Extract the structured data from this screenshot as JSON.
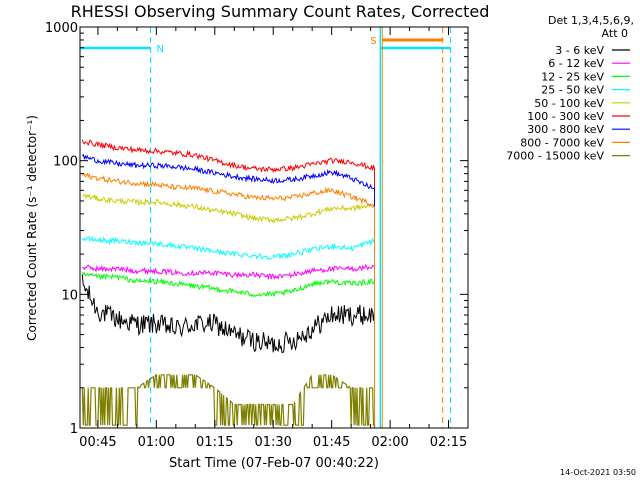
{
  "chart_data": {
    "type": "line",
    "title": "RHESSI Observing Summary Count Rates, Corrected",
    "xlabel": "Start Time (07-Feb-07 00:40:22)",
    "ylabel": "Corrected Count Rate (s⁻¹ detector⁻¹)",
    "yscale": "log",
    "ylim": [
      1,
      1000
    ],
    "xlim_minutes": [
      40.4,
      140
    ],
    "x_ticks": [
      {
        "minute": 45,
        "label": "00:45"
      },
      {
        "minute": 60,
        "label": "01:00"
      },
      {
        "minute": 75,
        "label": "01:15"
      },
      {
        "minute": 90,
        "label": "01:30"
      },
      {
        "minute": 105,
        "label": "01:45"
      },
      {
        "minute": 120,
        "label": "02:00"
      },
      {
        "minute": 135,
        "label": "02:15"
      }
    ],
    "y_ticks": [
      {
        "value": 1,
        "label": "1"
      },
      {
        "value": 10,
        "label": "10"
      },
      {
        "value": 100,
        "label": "100"
      },
      {
        "value": 1000,
        "label": "1000"
      }
    ],
    "legend_header": [
      "Det 1,3,4,5,6,9,",
      "Att 0"
    ],
    "legend_placement": "right",
    "grid": false,
    "timestamp": "14-Oct-2021 03:50",
    "data_end_minute": 116,
    "night_intervals": [
      {
        "start": 40.4,
        "end": 58.5,
        "label": "N",
        "color": "#00e5ff"
      },
      {
        "start": 117.5,
        "end": 135.5,
        "color": "#00e5ff"
      }
    ],
    "saa_interval": {
      "start": 118,
      "end": 133.5,
      "label": "S",
      "color": "#ff8000"
    },
    "minute_x": [
      41,
      45,
      50,
      55,
      60,
      65,
      70,
      75,
      80,
      85,
      90,
      95,
      100,
      105,
      110,
      115.5
    ],
    "series": [
      {
        "name": "3 - 6 keV",
        "color": "#000000",
        "values": [
          12,
          7.5,
          6.5,
          6,
          6,
          5.5,
          6,
          6,
          5,
          4.5,
          4.2,
          4.5,
          5.5,
          7,
          7,
          7
        ]
      },
      {
        "name": "6 - 12 keV",
        "color": "#ff00ff",
        "values": [
          16,
          15.5,
          15.5,
          15,
          15,
          14.5,
          14.5,
          14.5,
          14,
          14,
          13.5,
          14,
          15,
          15.5,
          15.5,
          16
        ]
      },
      {
        "name": "12 - 25 keV",
        "color": "#00ff00",
        "values": [
          14,
          13.5,
          13.5,
          12.5,
          12.5,
          12,
          11.5,
          11,
          10.5,
          10,
          10,
          10.5,
          12,
          12.5,
          12,
          12.5
        ]
      },
      {
        "name": "25 - 50 keV",
        "color": "#00ffff",
        "values": [
          26,
          25.5,
          25,
          24.5,
          24,
          23,
          22,
          21,
          20,
          19.5,
          19,
          20,
          21.5,
          23,
          22,
          25
        ]
      },
      {
        "name": "50 - 100 keV",
        "color": "#cccc00",
        "values": [
          55,
          52,
          50,
          49,
          49,
          47,
          45,
          42,
          40,
          37,
          36,
          37,
          40,
          44,
          44,
          46
        ]
      },
      {
        "name": "100 - 300 keV",
        "color": "#ff0000",
        "values": [
          140,
          132,
          125,
          120,
          118,
          114,
          110,
          100,
          92,
          87,
          86,
          88,
          94,
          100,
          98,
          88
        ]
      },
      {
        "name": "300 - 800 keV",
        "color": "#0000ff",
        "values": [
          108,
          100,
          95,
          92,
          92,
          90,
          86,
          81,
          76,
          73,
          71,
          72,
          77,
          82,
          74,
          62
        ]
      },
      {
        "name": "800 - 7000 keV",
        "color": "#ff8000",
        "values": [
          78,
          74,
          70,
          68,
          66,
          63,
          62,
          59,
          56,
          53,
          52,
          53,
          57,
          60,
          54,
          47
        ]
      },
      {
        "name": "7000 - 15000 keV",
        "color": "#808000",
        "values": [
          2,
          2,
          2,
          2,
          2.5,
          2.5,
          2.5,
          2,
          1.5,
          1.5,
          1.5,
          1.5,
          2.5,
          2.5,
          2,
          2
        ]
      }
    ]
  }
}
